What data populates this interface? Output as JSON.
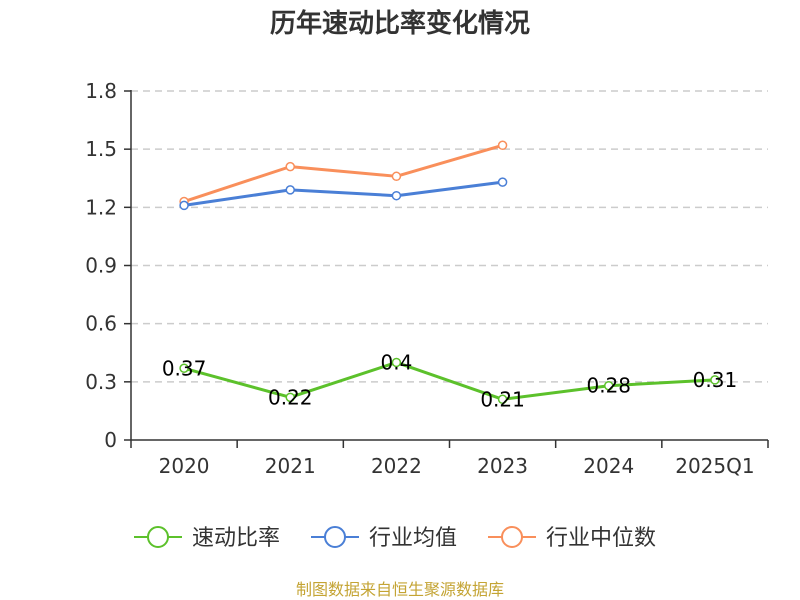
{
  "chart_data": {
    "type": "line",
    "title": "历年速动比率变化情况",
    "categories": [
      "2020",
      "2021",
      "2022",
      "2023",
      "2024",
      "2025Q1"
    ],
    "ylim": [
      0,
      1.8
    ],
    "yticks": [
      "0",
      "0.3",
      "0.6",
      "0.9",
      "1.2",
      "1.5",
      "1.8"
    ],
    "grid": true,
    "legend_position": "bottom",
    "series": [
      {
        "name": "速动比率",
        "color": "#5cc12b",
        "values": [
          0.37,
          0.22,
          0.4,
          0.21,
          0.28,
          0.31
        ],
        "labels": [
          "0.37",
          "0.22",
          "0.4",
          "0.21",
          "0.28",
          "0.31"
        ],
        "show_labels": true
      },
      {
        "name": "行业均值",
        "color": "#4a7fd6",
        "values": [
          1.21,
          1.29,
          1.26,
          1.33,
          null,
          null
        ],
        "show_labels": false
      },
      {
        "name": "行业中位数",
        "color": "#f98f5b",
        "values": [
          1.23,
          1.41,
          1.36,
          1.52,
          null,
          null
        ],
        "show_labels": false
      }
    ]
  },
  "source": "制图数据来自恒生聚源数据库"
}
